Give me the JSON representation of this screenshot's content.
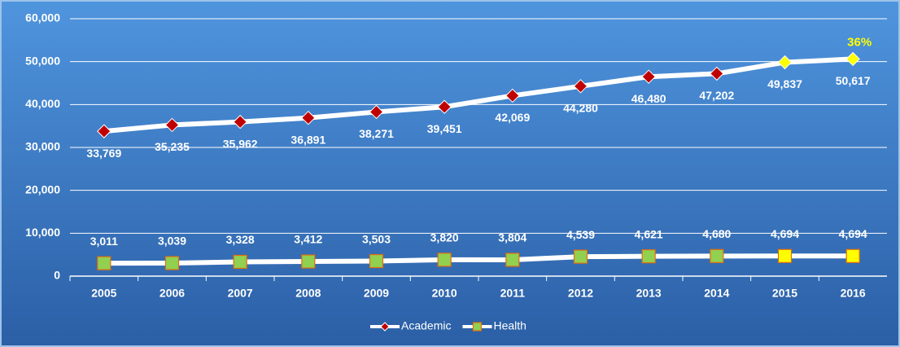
{
  "chart_data": {
    "type": "line",
    "categories": [
      "2005",
      "2006",
      "2007",
      "2008",
      "2009",
      "2010",
      "2011",
      "2012",
      "2013",
      "2014",
      "2015",
      "2016"
    ],
    "series": [
      {
        "name": "Academic",
        "color": "#ffffff",
        "marker": "diamond",
        "marker_colors": [
          "#c00000",
          "#c00000",
          "#c00000",
          "#c00000",
          "#c00000",
          "#c00000",
          "#c00000",
          "#c00000",
          "#c00000",
          "#c00000",
          "#ffff00",
          "#ffff00"
        ],
        "values": [
          33769,
          35235,
          35962,
          36891,
          38271,
          39451,
          42069,
          44280,
          46480,
          47202,
          49837,
          50617
        ],
        "value_labels": [
          "33,769",
          "35,235",
          "35,962",
          "36,891",
          "38,271",
          "39,451",
          "42,069",
          "44,280",
          "46,480",
          "47,202",
          "49,837",
          "50,617"
        ]
      },
      {
        "name": "Health",
        "color": "#ffffff",
        "marker": "square",
        "marker_colors": [
          "#92d050",
          "#92d050",
          "#92d050",
          "#92d050",
          "#92d050",
          "#92d050",
          "#92d050",
          "#92d050",
          "#92d050",
          "#92d050",
          "#ffff00",
          "#ffff00"
        ],
        "values": [
          3011,
          3039,
          3328,
          3412,
          3503,
          3820,
          3804,
          4539,
          4621,
          4680,
          4694,
          4694
        ],
        "value_labels": [
          "3,011",
          "3,039",
          "3,328",
          "3,412",
          "3,503",
          "3,820",
          "3,804",
          "4,539",
          "4,621",
          "4,680",
          "4,694",
          "4,694"
        ]
      }
    ],
    "annotations": [
      {
        "text": "36%",
        "color": "#ffff00"
      }
    ],
    "ylim": [
      0,
      60000
    ],
    "yticks": [
      0,
      {
        "value": 10000,
        "label": "10,000"
      },
      {
        "value": 20000,
        "label": "20,000"
      },
      {
        "value": 30000,
        "label": "30,000"
      },
      {
        "value": 40000,
        "label": "40,000"
      },
      {
        "value": 50000,
        "label": "50,000"
      },
      {
        "value": 60000,
        "label": "60,000"
      }
    ],
    "grid": true,
    "legend": "bottom"
  }
}
